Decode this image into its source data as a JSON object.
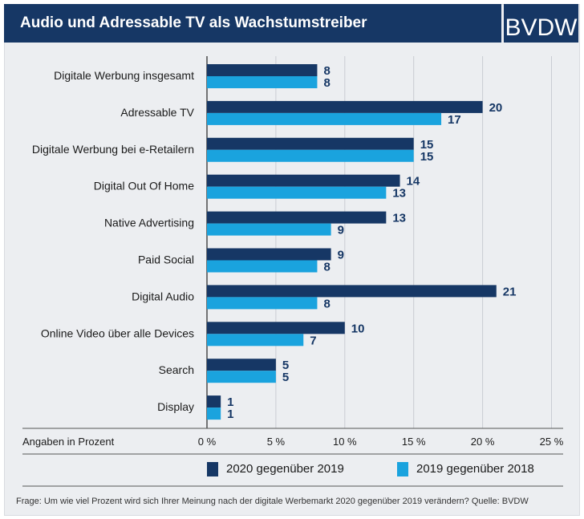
{
  "header": {
    "title": "Audio und Adressable TV als Wachstumstreiber",
    "logo": "BVDW"
  },
  "colors": {
    "series_2020": "#163765",
    "series_2019": "#1aa3de",
    "header_bg": "#163765",
    "panel_bg": "#eceef1",
    "grid": "#c9ccd3"
  },
  "chart_data": {
    "type": "bar",
    "orientation": "horizontal",
    "categories": [
      "Digitale Werbung insgesamt",
      "Adressable TV",
      "Digitale Werbung bei e-Retailern",
      "Digital Out Of Home",
      "Native Advertising",
      "Paid Social",
      "Digital Audio",
      "Online Video über alle Devices",
      "Search",
      "Display"
    ],
    "series": [
      {
        "name": "2020 gegenüber 2019",
        "values": [
          8,
          20,
          15,
          14,
          13,
          9,
          21,
          10,
          5,
          1
        ]
      },
      {
        "name": "2019 gegenüber 2018",
        "values": [
          8,
          17,
          15,
          13,
          9,
          8,
          8,
          7,
          5,
          1
        ]
      }
    ],
    "xlabel": "Angaben in Prozent",
    "xlim": [
      0,
      25
    ],
    "xticks": [
      "0 %",
      "5 %",
      "10 %",
      "15 %",
      "20 %",
      "25 %"
    ],
    "grid": true,
    "legend_position": "bottom"
  },
  "footnote": "Frage: Um wie viel Prozent wird sich Ihrer Meinung nach der digitale Werbemarkt 2020 gegenüber 2019 verändern? Quelle: BVDW"
}
